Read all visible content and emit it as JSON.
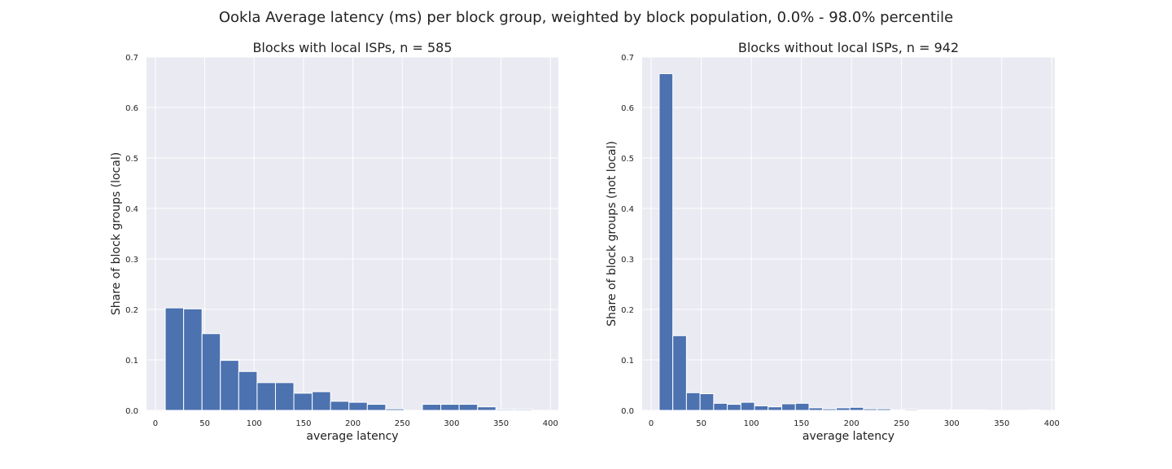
{
  "figure": {
    "title": "Ookla Average latency (ms) per block group, weighted by block population, 0.0% - 98.0% percentile"
  },
  "chart_data": [
    {
      "type": "bar",
      "title": "Blocks with local ISPs, n = 585",
      "xlabel": "average latency",
      "ylabel": "Share of block groups (local)",
      "xlim": [
        -9,
        408
      ],
      "ylim": [
        0,
        0.7
      ],
      "xticks": [
        0,
        50,
        100,
        150,
        200,
        250,
        300,
        350,
        400
      ],
      "yticks": [
        0.0,
        0.1,
        0.2,
        0.3,
        0.4,
        0.5,
        0.6,
        0.7
      ],
      "grid": true,
      "bin_edges": [
        10,
        28.6,
        47.2,
        65.8,
        84.4,
        103,
        121.6,
        140.2,
        158.8,
        177.4,
        196,
        214.6,
        233.2,
        251.8,
        270.4,
        289,
        307.6,
        326.2,
        344.8,
        363.4,
        382
      ],
      "values": [
        0.203,
        0.201,
        0.152,
        0.099,
        0.077,
        0.055,
        0.055,
        0.034,
        0.037,
        0.018,
        0.016,
        0.012,
        0.003,
        0.0,
        0.012,
        0.012,
        0.012,
        0.007,
        0.002,
        0.002
      ]
    },
    {
      "type": "bar",
      "title": "Blocks without local ISPs, n = 942",
      "xlabel": "average latency",
      "ylabel": "Share of block groups (not local)",
      "xlim": [
        -9,
        403
      ],
      "ylim": [
        0,
        0.7
      ],
      "xticks": [
        0,
        50,
        100,
        150,
        200,
        250,
        300,
        350,
        400
      ],
      "yticks": [
        0.0,
        0.1,
        0.2,
        0.3,
        0.4,
        0.5,
        0.6,
        0.7
      ],
      "grid": true,
      "bin_edges": [
        8,
        21.6,
        35.2,
        48.8,
        62.4,
        76,
        89.6,
        103.2,
        116.8,
        130.4,
        144,
        157.6,
        171.2,
        184.8,
        198.4,
        212,
        225.6,
        239.2,
        252.8,
        266.4,
        280,
        293.6,
        307.2,
        320.8,
        334.4,
        348,
        361.6,
        375.2,
        388.8
      ],
      "values": [
        0.667,
        0.148,
        0.035,
        0.033,
        0.014,
        0.012,
        0.016,
        0.009,
        0.007,
        0.013,
        0.014,
        0.005,
        0.003,
        0.005,
        0.006,
        0.003,
        0.003,
        0.001,
        0.002,
        0.001,
        0.001,
        0.001,
        0.001,
        0.001,
        0.0,
        0.0,
        0.0,
        0.001
      ]
    }
  ]
}
